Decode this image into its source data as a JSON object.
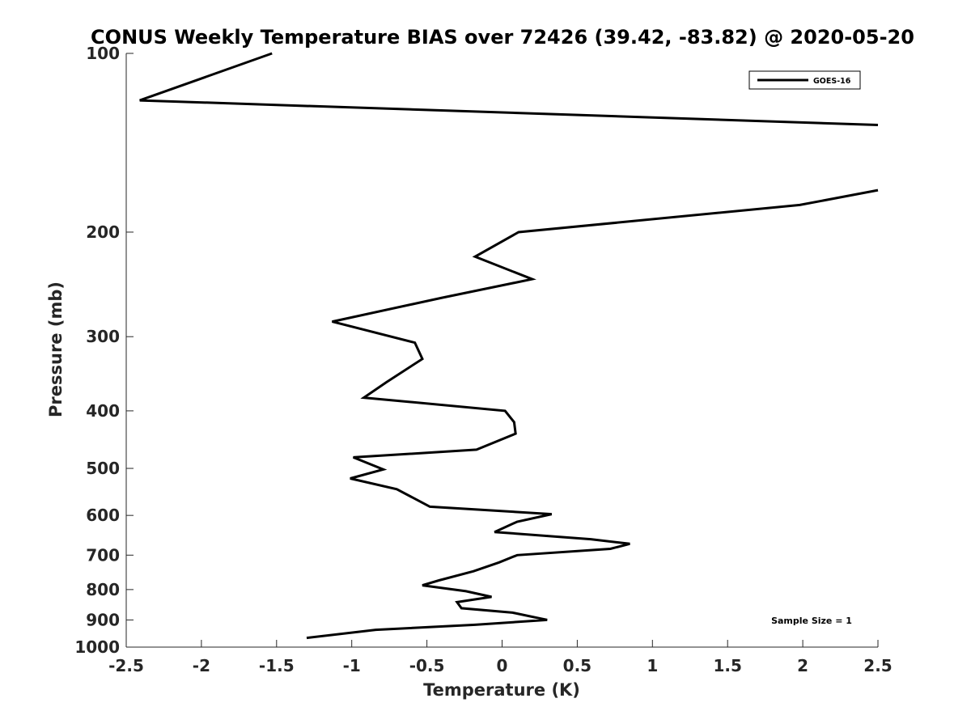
{
  "chart_data": {
    "type": "line",
    "title": "CONUS Weekly Temperature BIAS over 72426 (39.42, -83.82) @ 2020-05-20",
    "xlabel": "Temperature (K)",
    "ylabel": "Pressure (mb)",
    "xlim": [
      -2.5,
      2.5
    ],
    "ylim": [
      100,
      1000
    ],
    "y_scale": "log",
    "y_reversed": true,
    "xticks": [
      "-2.5",
      "-2",
      "-1.5",
      "-1",
      "-0.5",
      "0",
      "0.5",
      "1",
      "1.5",
      "2",
      "2.5"
    ],
    "yticks": [
      "100",
      "200",
      "300",
      "400",
      "500",
      "600",
      "700",
      "800",
      "900",
      "1000"
    ],
    "legend": {
      "entries": [
        "GOES-16"
      ],
      "placement": "top-right"
    },
    "annotation": "Sample Size = 1",
    "series": [
      {
        "name": "GOES-16",
        "color": "#000000",
        "segments": [
          [
            {
              "x": -1.53,
              "y": 100
            },
            {
              "x": -2.41,
              "y": 120
            },
            {
              "x": 2.5,
              "y": 132
            }
          ],
          [
            {
              "x": 2.5,
              "y": 170
            },
            {
              "x": 1.98,
              "y": 180
            },
            {
              "x": 0.11,
              "y": 200
            },
            {
              "x": -0.18,
              "y": 220
            },
            {
              "x": 0.2,
              "y": 240
            },
            {
              "x": -0.4,
              "y": 258
            },
            {
              "x": -1.13,
              "y": 283
            },
            {
              "x": -0.58,
              "y": 307
            },
            {
              "x": -0.53,
              "y": 327
            },
            {
              "x": -0.77,
              "y": 358
            },
            {
              "x": -0.92,
              "y": 380
            },
            {
              "x": 0.02,
              "y": 400
            },
            {
              "x": 0.08,
              "y": 418
            },
            {
              "x": 0.09,
              "y": 437
            },
            {
              "x": -0.17,
              "y": 465
            },
            {
              "x": -0.99,
              "y": 479
            },
            {
              "x": -0.79,
              "y": 502
            },
            {
              "x": -1.01,
              "y": 520
            },
            {
              "x": -0.7,
              "y": 542
            },
            {
              "x": -0.48,
              "y": 580
            },
            {
              "x": 0.33,
              "y": 597
            },
            {
              "x": 0.1,
              "y": 615
            },
            {
              "x": -0.05,
              "y": 640
            },
            {
              "x": 0.59,
              "y": 658
            },
            {
              "x": 0.85,
              "y": 670
            },
            {
              "x": 0.72,
              "y": 683
            },
            {
              "x": 0.1,
              "y": 700
            },
            {
              "x": -0.02,
              "y": 720
            },
            {
              "x": -0.19,
              "y": 745
            },
            {
              "x": -0.42,
              "y": 772
            },
            {
              "x": -0.53,
              "y": 787
            },
            {
              "x": -0.24,
              "y": 805
            },
            {
              "x": -0.07,
              "y": 823
            },
            {
              "x": -0.3,
              "y": 840
            },
            {
              "x": -0.27,
              "y": 860
            },
            {
              "x": 0.07,
              "y": 875
            },
            {
              "x": 0.3,
              "y": 900
            },
            {
              "x": -0.18,
              "y": 917
            },
            {
              "x": -0.84,
              "y": 935
            },
            {
              "x": -1.3,
              "y": 965
            }
          ]
        ]
      }
    ]
  }
}
